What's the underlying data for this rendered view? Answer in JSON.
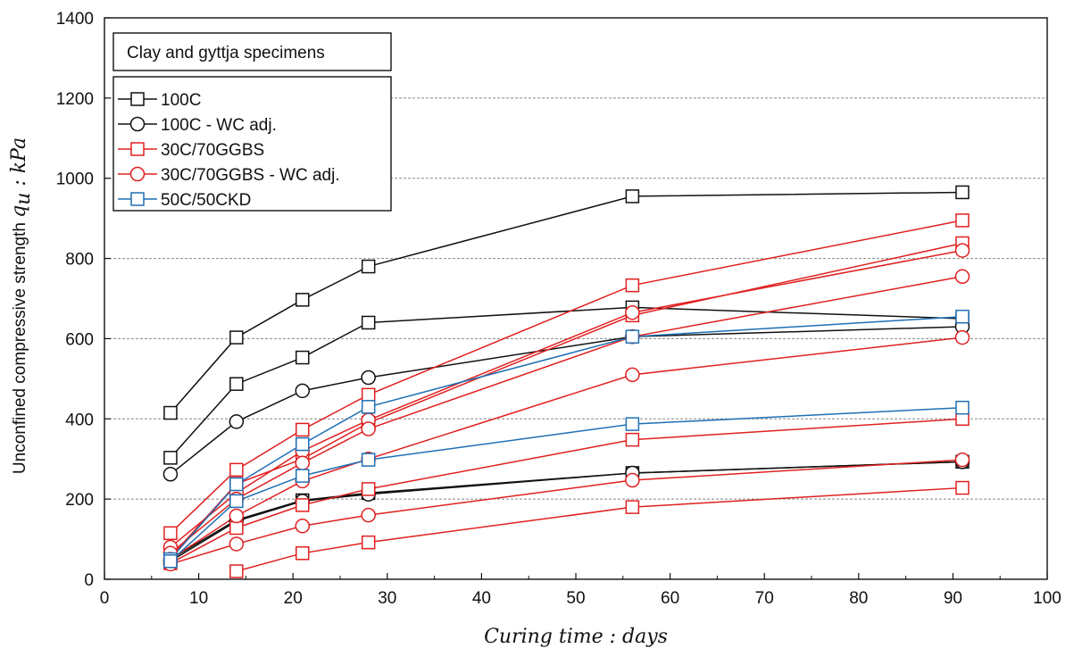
{
  "chart_data": {
    "type": "line",
    "title": "",
    "xlabel": "Curing time : days",
    "ylabel": "Unconfined compressive strength",
    "ylabel_symbol": "q",
    "ylabel_subscript": "u",
    "ylabel_unit": " : kPa",
    "xlim": [
      0,
      100
    ],
    "ylim": [
      0,
      1400
    ],
    "x_ticks": [
      0,
      10,
      20,
      30,
      40,
      50,
      60,
      70,
      80,
      90,
      100
    ],
    "y_ticks": [
      0,
      200,
      400,
      600,
      800,
      1000,
      1200,
      1400
    ],
    "grid": "horizontal dashed at 200, 400, 600, 800, 1000, 1200",
    "legend_title": "Clay and gyttja specimens",
    "legend_position": "top-left",
    "legend": [
      {
        "label": "100C",
        "color": "#111111",
        "marker": "square"
      },
      {
        "label": "100C - WC adj.",
        "color": "#111111",
        "marker": "circle"
      },
      {
        "label": "30C/70GGBS",
        "color": "#e02020",
        "marker": "square"
      },
      {
        "label": "30C/70GGBS - WC adj.",
        "color": "#e02020",
        "marker": "circle"
      },
      {
        "label": "50C/50CKD",
        "color": "#1f6fb4",
        "marker": "square"
      }
    ],
    "series": [
      {
        "group": "100C",
        "color": "#111111",
        "marker": "square",
        "x": [
          7,
          14,
          21,
          28,
          56,
          91
        ],
        "y": [
          415,
          603,
          697,
          780,
          955,
          965
        ]
      },
      {
        "group": "100C",
        "color": "#111111",
        "marker": "square",
        "x": [
          7,
          14,
          21,
          28,
          56,
          91
        ],
        "y": [
          303,
          487,
          553,
          640,
          678,
          650
        ]
      },
      {
        "group": "100C",
        "color": "#111111",
        "marker": "square",
        "x": [
          7,
          14,
          21,
          28,
          56,
          91
        ],
        "y": [
          50,
          148,
          197,
          215,
          265,
          293
        ]
      },
      {
        "group": "100C - WC adj.",
        "color": "#111111",
        "marker": "circle",
        "x": [
          7,
          14,
          21,
          28,
          56,
          91
        ],
        "y": [
          262,
          393,
          470,
          503,
          605,
          630
        ]
      },
      {
        "group": "100C - WC adj.",
        "color": "#111111",
        "marker": "circle",
        "x": [
          7,
          14,
          21,
          28,
          56,
          91
        ],
        "y": [
          45,
          145,
          195,
          212,
          265,
          293
        ]
      },
      {
        "group": "30C/70GGBS",
        "color": "#e02020",
        "marker": "square",
        "x": [
          7,
          14,
          21,
          28,
          56,
          91
        ],
        "y": [
          115,
          273,
          373,
          460,
          733,
          895
        ]
      },
      {
        "group": "30C/70GGBS",
        "color": "#e02020",
        "marker": "square",
        "x": [
          7,
          14,
          21,
          28,
          56,
          91
        ],
        "y": [
          55,
          238,
          300,
          390,
          658,
          838
        ]
      },
      {
        "group": "30C/70GGBS",
        "color": "#e02020",
        "marker": "square",
        "x": [
          7,
          14,
          21,
          28,
          56,
          91
        ],
        "y": [
          40,
          128,
          185,
          225,
          348,
          400
        ]
      },
      {
        "group": "30C/70GGBS",
        "color": "#e02020",
        "marker": "square",
        "x": [
          14,
          21,
          28,
          56,
          91
        ],
        "y": [
          20,
          65,
          92,
          180,
          228
        ]
      },
      {
        "group": "30C/70GGBS - WC adj.",
        "color": "#e02020",
        "marker": "circle",
        "x": [
          7,
          14,
          21,
          28,
          56,
          91
        ],
        "y": [
          80,
          215,
          320,
          397,
          665,
          820
        ]
      },
      {
        "group": "30C/70GGBS - WC adj.",
        "color": "#e02020",
        "marker": "circle",
        "x": [
          7,
          14,
          21,
          28,
          56,
          91
        ],
        "y": [
          65,
          200,
          290,
          375,
          605,
          755
        ]
      },
      {
        "group": "30C/70GGBS - WC adj.",
        "color": "#e02020",
        "marker": "circle",
        "x": [
          7,
          14,
          21,
          28,
          56,
          91
        ],
        "y": [
          50,
          158,
          245,
          300,
          510,
          603
        ]
      },
      {
        "group": "30C/70GGBS - WC adj.",
        "color": "#e02020",
        "marker": "circle",
        "x": [
          7,
          14,
          21,
          28,
          56,
          91
        ],
        "y": [
          38,
          88,
          133,
          160,
          247,
          298
        ]
      },
      {
        "group": "50C/50CKD",
        "color": "#1f6fb4",
        "marker": "square",
        "x": [
          7,
          14,
          21,
          28,
          56,
          91
        ],
        "y": [
          50,
          237,
          337,
          430,
          605,
          655
        ]
      },
      {
        "group": "50C/50CKD",
        "color": "#1f6fb4",
        "marker": "square",
        "x": [
          7,
          14,
          21,
          28,
          56,
          91
        ],
        "y": [
          45,
          195,
          258,
          298,
          387,
          428
        ]
      }
    ]
  }
}
